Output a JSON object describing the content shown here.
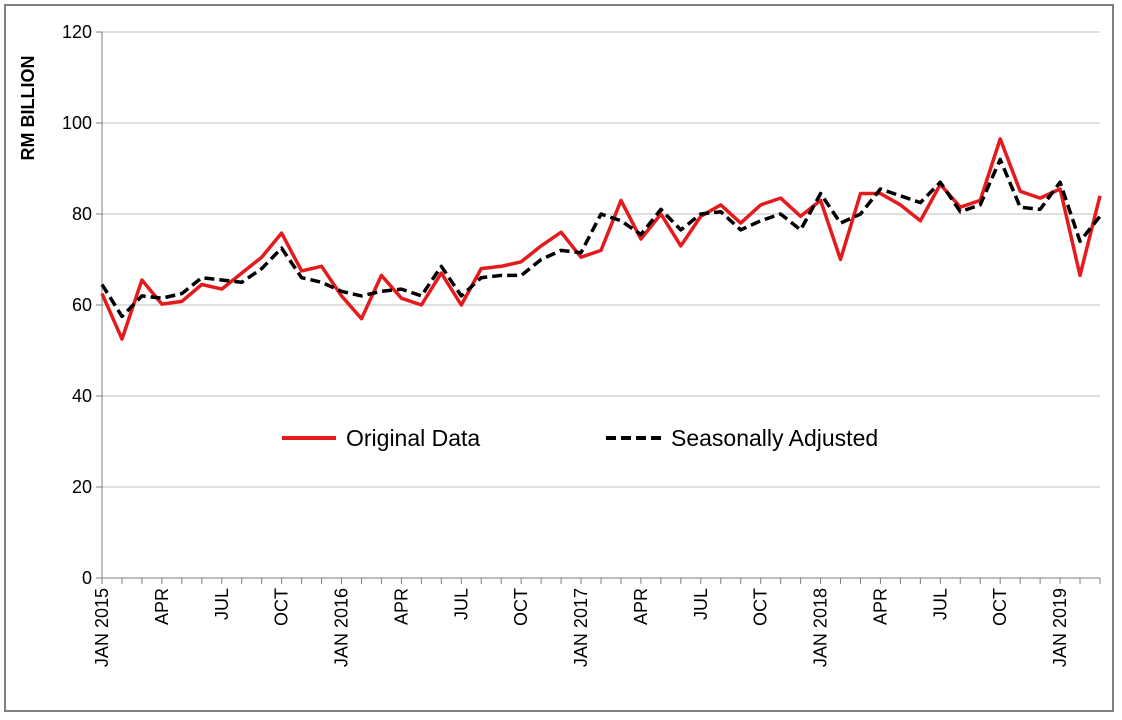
{
  "chart_data": {
    "type": "line",
    "title": "",
    "xlabel": "",
    "ylabel": "RM BILLION",
    "ylim": [
      0,
      120
    ],
    "yticks": [
      0,
      20,
      40,
      60,
      80,
      100,
      120
    ],
    "grid": "horizontal",
    "legend_position": "center",
    "x": [
      "2015-01",
      "2015-02",
      "2015-03",
      "2015-04",
      "2015-05",
      "2015-06",
      "2015-07",
      "2015-08",
      "2015-09",
      "2015-10",
      "2015-11",
      "2015-12",
      "2016-01",
      "2016-02",
      "2016-03",
      "2016-04",
      "2016-05",
      "2016-06",
      "2016-07",
      "2016-08",
      "2016-09",
      "2016-10",
      "2016-11",
      "2016-12",
      "2017-01",
      "2017-02",
      "2017-03",
      "2017-04",
      "2017-05",
      "2017-06",
      "2017-07",
      "2017-08",
      "2017-09",
      "2017-10",
      "2017-11",
      "2017-12",
      "2018-01",
      "2018-02",
      "2018-03",
      "2018-04",
      "2018-05",
      "2018-06",
      "2018-07",
      "2018-08",
      "2018-09",
      "2018-10",
      "2018-11",
      "2018-12",
      "2019-01",
      "2019-02",
      "2019-03"
    ],
    "x_tick_labels": [
      {
        "index": 0,
        "label": "JAN 2015"
      },
      {
        "index": 3,
        "label": "APR"
      },
      {
        "index": 6,
        "label": "JUL"
      },
      {
        "index": 9,
        "label": "OCT"
      },
      {
        "index": 12,
        "label": "JAN 2016"
      },
      {
        "index": 15,
        "label": "APR"
      },
      {
        "index": 18,
        "label": "JUL"
      },
      {
        "index": 21,
        "label": "OCT"
      },
      {
        "index": 24,
        "label": "JAN 2017"
      },
      {
        "index": 27,
        "label": "APR"
      },
      {
        "index": 30,
        "label": "JUL"
      },
      {
        "index": 33,
        "label": "OCT"
      },
      {
        "index": 36,
        "label": "JAN 2018"
      },
      {
        "index": 39,
        "label": "APR"
      },
      {
        "index": 42,
        "label": "JUL"
      },
      {
        "index": 45,
        "label": "OCT"
      },
      {
        "index": 48,
        "label": "JAN 2019"
      }
    ],
    "series": [
      {
        "name": "Original Data",
        "color": "#e41a1c",
        "style": "solid",
        "values": [
          62.5,
          52.5,
          65.5,
          60.2,
          60.8,
          64.5,
          63.5,
          67.0,
          70.5,
          75.8,
          67.5,
          68.5,
          62.0,
          57.0,
          66.5,
          61.5,
          60.0,
          67.0,
          60.0,
          68.0,
          68.5,
          69.5,
          73.0,
          76.0,
          70.5,
          72.0,
          83.0,
          74.5,
          80.0,
          73.0,
          79.5,
          82.0,
          78.0,
          82.0,
          83.5,
          79.5,
          83.0,
          70.0,
          84.5,
          84.5,
          82.0,
          78.5,
          86.5,
          81.5,
          83.0,
          96.5,
          85.0,
          83.5,
          85.5,
          66.5,
          84.0
        ]
      },
      {
        "name": "Seasonally Adjusted",
        "color": "#000000",
        "style": "dashed",
        "values": [
          64.5,
          57.5,
          62.0,
          61.5,
          62.5,
          66.0,
          65.5,
          65.0,
          68.0,
          72.5,
          66.0,
          65.0,
          63.0,
          62.0,
          63.0,
          63.5,
          62.0,
          68.5,
          62.0,
          66.0,
          66.5,
          66.5,
          70.0,
          72.0,
          71.5,
          80.0,
          78.5,
          75.5,
          81.0,
          76.5,
          80.0,
          80.5,
          76.5,
          78.5,
          80.0,
          76.5,
          84.5,
          78.0,
          80.0,
          85.5,
          84.0,
          82.5,
          87.0,
          80.5,
          82.0,
          92.0,
          81.5,
          81.0,
          87.0,
          74.0,
          79.5
        ]
      }
    ]
  }
}
